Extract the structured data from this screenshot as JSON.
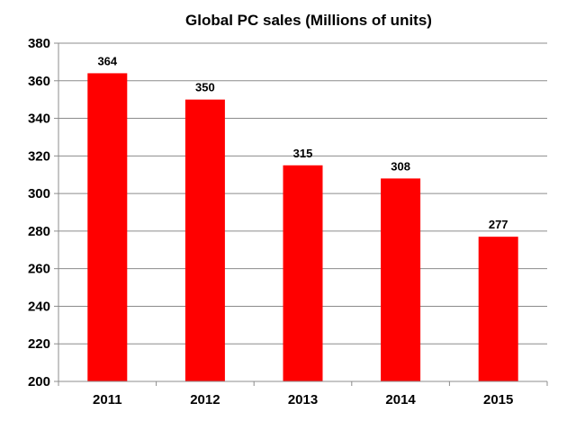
{
  "chart_data": {
    "type": "bar",
    "title": "Global PC sales (Millions of units)",
    "xlabel": "",
    "ylabel": "",
    "categories": [
      "2011",
      "2012",
      "2013",
      "2014",
      "2015"
    ],
    "values": [
      364,
      350,
      315,
      308,
      277
    ],
    "data_labels": [
      "364",
      "350",
      "315",
      "308",
      "277"
    ],
    "ylim": [
      200,
      380
    ],
    "yticks": [
      200,
      220,
      240,
      260,
      280,
      300,
      320,
      340,
      360,
      380
    ],
    "ytick_labels": [
      "200",
      "220",
      "240",
      "260",
      "280",
      "300",
      "320",
      "340",
      "360",
      "380"
    ],
    "grid": true,
    "legend": "none",
    "colors": {
      "bar": "#ff0000",
      "grid": "#8c8c8c",
      "axis": "#8c8c8c",
      "text": "#000000"
    }
  }
}
